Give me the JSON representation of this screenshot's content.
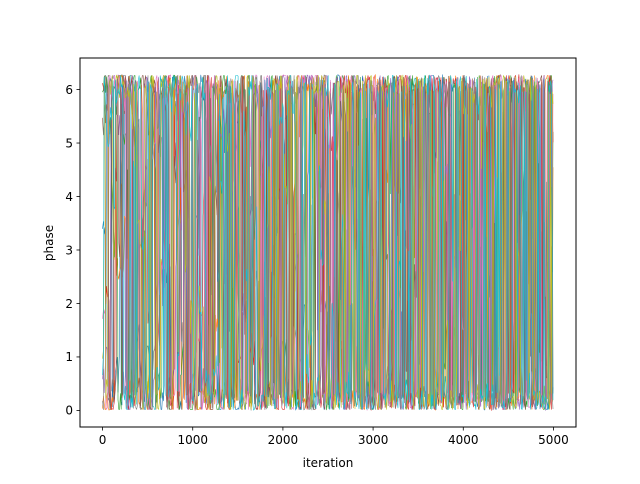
{
  "chart_data": {
    "type": "line",
    "title": "",
    "xlabel": "iteration",
    "ylabel": "phase",
    "xlim": [
      -250,
      5250
    ],
    "ylim": [
      -0.31,
      6.59
    ],
    "xticks": [
      0,
      1000,
      2000,
      3000,
      4000,
      5000
    ],
    "xtick_labels": [
      "0",
      "1000",
      "2000",
      "3000",
      "4000",
      "5000"
    ],
    "yticks": [
      0,
      1,
      2,
      3,
      4,
      5,
      6
    ],
    "ytick_labels": [
      "0",
      "1",
      "2",
      "3",
      "4",
      "5",
      "6"
    ],
    "grid": false,
    "legend": "none",
    "x_range": [
      0,
      5000
    ],
    "y_range_observed": [
      0,
      6.283
    ],
    "series_count_estimate": 10,
    "series_colors": [
      "#1f77b4",
      "#ff7f0e",
      "#2ca02c",
      "#d62728",
      "#9467bd",
      "#8c564b",
      "#e377c2",
      "#7f7f7f",
      "#bcbd22",
      "#17becf"
    ]
  }
}
